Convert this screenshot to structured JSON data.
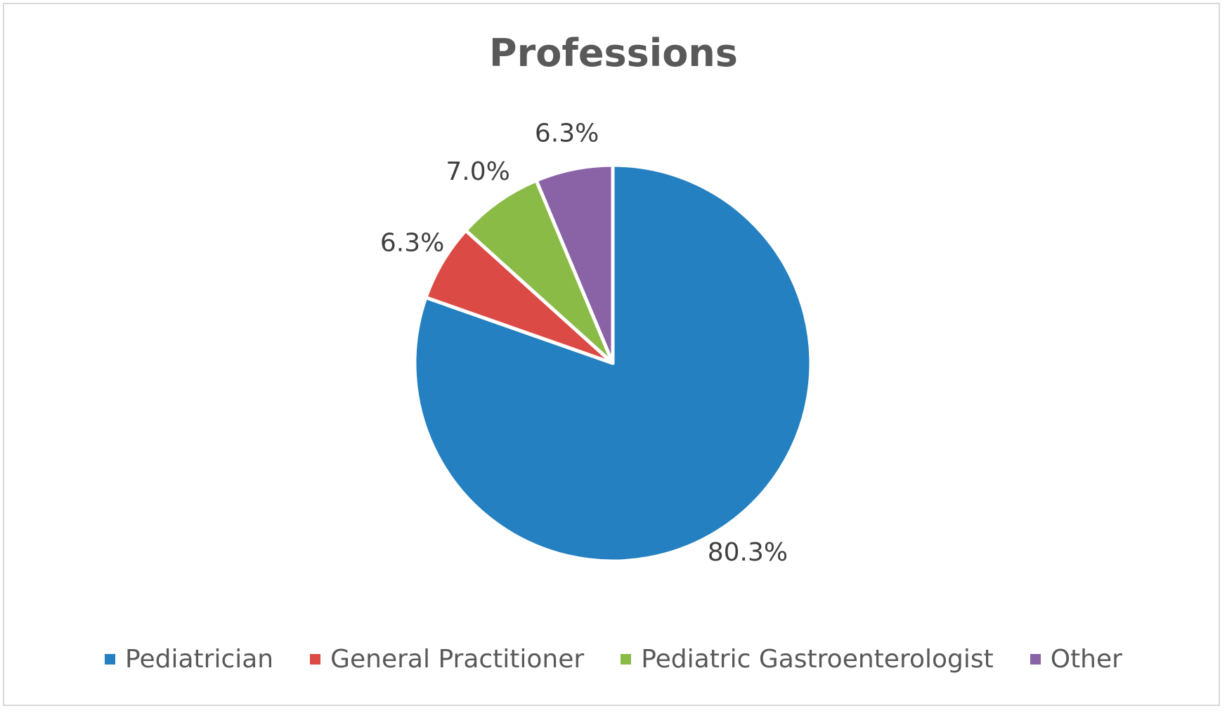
{
  "chart_data": {
    "type": "pie",
    "title": "Professions",
    "legend_position": "bottom",
    "start_angle_deg": 0,
    "direction": "clockwise",
    "slices": [
      {
        "label": "Pediatrician",
        "value": 80.3,
        "display": "80.3%",
        "color": "#2480C0"
      },
      {
        "label": "General Practitioner",
        "value": 6.3,
        "display": "6.3%",
        "color": "#DC4A45"
      },
      {
        "label": "Pediatric Gastroenterologist",
        "value": 7.0,
        "display": "7.0%",
        "color": "#8BBB47"
      },
      {
        "label": "Other",
        "value": 6.3,
        "display": "6.3%",
        "color": "#8A63A6"
      }
    ]
  }
}
